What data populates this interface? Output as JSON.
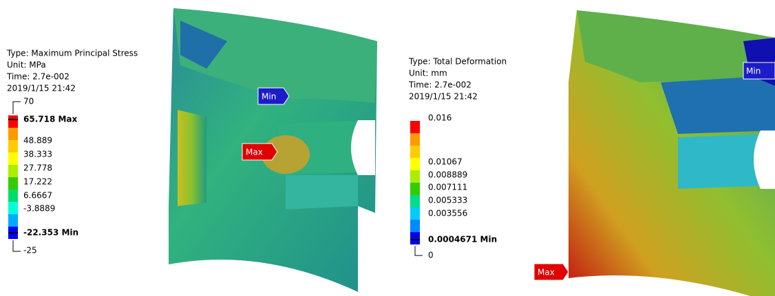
{
  "panels": [
    {
      "type_label": "Type: Maximum Principal Stress",
      "unit": "Unit: MPa",
      "time": "Time: 2.7e-002",
      "date": "2019/1/15 21:42",
      "legend": {
        "top": "70",
        "max": "65.718 Max",
        "levels": [
          "48.889",
          "38.333",
          "27.778",
          "17.222",
          "6.6667",
          "-3.8889"
        ],
        "min": "-22.353 Min",
        "bottom": "-25"
      },
      "probes": {
        "min": "Min",
        "max": "Max"
      }
    },
    {
      "type_label": "Type: Total Deformation",
      "unit": "Unit: mm",
      "time": "Time: 2.7e-002",
      "date": "2019/1/15 21:42",
      "legend": {
        "top": "0.016",
        "levels": [
          "0.01067",
          "0.008889",
          "0.007111",
          "0.005333",
          "0.003556"
        ],
        "min": "0.0004671 Min",
        "bottom": "0"
      },
      "probes": {
        "min": "Min",
        "max": "Max"
      }
    }
  ]
}
